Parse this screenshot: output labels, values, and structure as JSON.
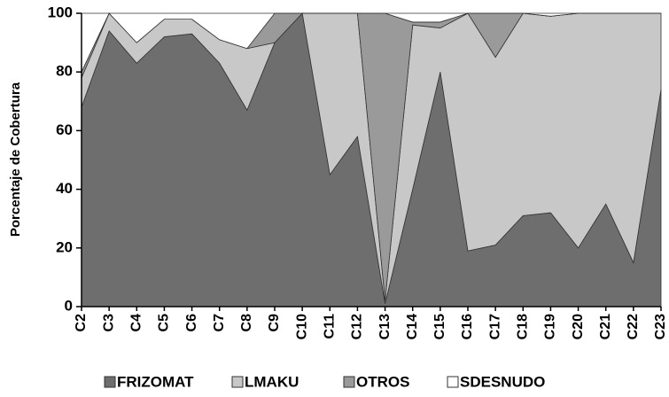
{
  "chart_data": {
    "type": "stacked_area",
    "ylabel": "Porcentaje de Cobertura",
    "categories": [
      "C2",
      "C3",
      "C4",
      "C5",
      "C6",
      "C7",
      "C8",
      "C9",
      "C10",
      "C11",
      "C12",
      "C13",
      "C14",
      "C15",
      "C16",
      "C17",
      "C18",
      "C19",
      "C20",
      "C21",
      "C22",
      "C23"
    ],
    "series": [
      {
        "name": "FRIZOMAT",
        "color": "#6e6e6e",
        "values": [
          68,
          94,
          83,
          92,
          93,
          83,
          67,
          90,
          100,
          45,
          58,
          1,
          40,
          80,
          19,
          21,
          31,
          32,
          20,
          35,
          15,
          74
        ]
      },
      {
        "name": "LMAKU",
        "color": "#c8c8c8",
        "values": [
          10,
          6,
          7,
          6,
          5,
          8,
          21,
          0,
          0,
          55,
          42,
          1,
          56,
          15,
          81,
          64,
          69,
          67,
          80,
          65,
          85,
          26
        ]
      },
      {
        "name": "OTROS",
        "color": "#9a9a9a",
        "values": [
          2,
          0,
          0,
          0,
          0,
          0,
          0,
          10,
          0,
          0,
          0,
          98,
          1,
          2,
          0,
          15,
          0,
          0,
          0,
          0,
          0,
          0
        ]
      },
      {
        "name": "SDESNUDO",
        "color": "#ffffff",
        "values": [
          20,
          0,
          10,
          2,
          2,
          9,
          12,
          0,
          0,
          0,
          0,
          0,
          3,
          3,
          0,
          0,
          0,
          1,
          0,
          0,
          0,
          0
        ]
      }
    ],
    "ylim": [
      0,
      100
    ],
    "yticks": [
      0,
      20,
      40,
      60,
      80,
      100
    ],
    "legend": "bottom"
  }
}
